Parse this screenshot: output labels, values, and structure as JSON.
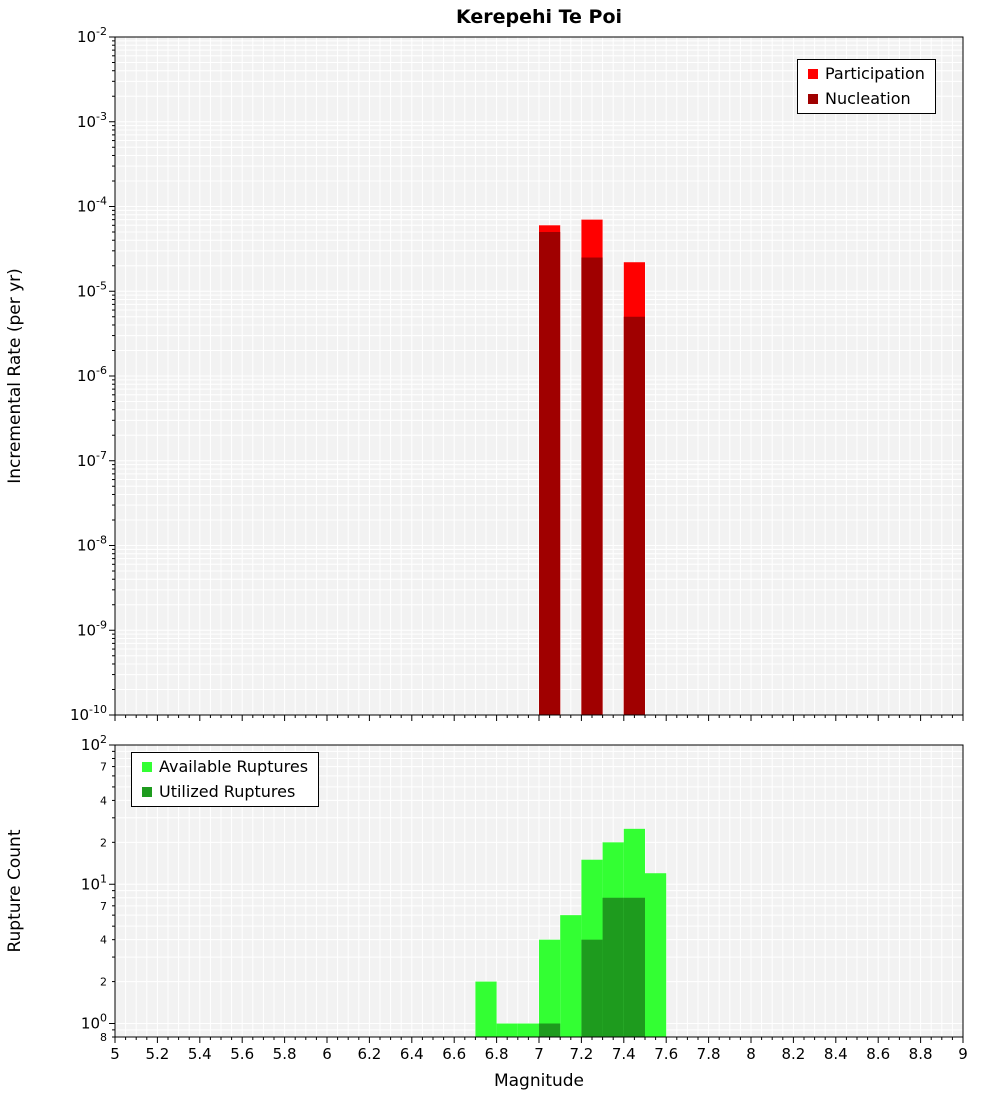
{
  "title": "Kerepehi Te Poi",
  "axes": {
    "x_label": "Magnitude",
    "top_y_label": "Incremental Rate (per yr)",
    "bottom_y_label": "Rupture Count"
  },
  "legend_top": {
    "participation": "Participation",
    "nucleation": "Nucleation"
  },
  "legend_bottom": {
    "available": "Available Ruptures",
    "utilized": "Utilized Ruptures"
  },
  "colors": {
    "participation": "#ff0000",
    "nucleation": "#a00000",
    "available": "#33ff33",
    "utilized": "#1e9b1e",
    "plot_background": "#f2f2f2",
    "grid": "#ffffff",
    "axis": "#000000"
  },
  "x_tick_labels": [
    "5",
    "5.2",
    "5.4",
    "5.6",
    "5.8",
    "6",
    "6.2",
    "6.4",
    "6.6",
    "6.8",
    "7",
    "7.2",
    "7.4",
    "7.6",
    "7.8",
    "8",
    "8.2",
    "8.4",
    "8.6",
    "8.8",
    "9"
  ],
  "y_ticks_top": [
    {
      "v": 0.01,
      "exp": "-2"
    },
    {
      "v": 0.001,
      "exp": "-3"
    },
    {
      "v": 0.0001,
      "exp": "-4"
    },
    {
      "v": 1e-05,
      "exp": "-5"
    },
    {
      "v": 1e-06,
      "exp": "-6"
    },
    {
      "v": 1e-07,
      "exp": "-7"
    },
    {
      "v": 1e-08,
      "exp": "-8"
    },
    {
      "v": 1e-09,
      "exp": "-9"
    },
    {
      "v": 1e-10,
      "exp": "-10"
    }
  ],
  "y_ticks_bottom": [
    {
      "v": 100,
      "exp": "2"
    },
    {
      "v": 70,
      "m": "7"
    },
    {
      "v": 40,
      "m": "4"
    },
    {
      "v": 20,
      "m": "2"
    },
    {
      "v": 10,
      "exp": "1"
    },
    {
      "v": 7,
      "m": "7"
    },
    {
      "v": 4,
      "m": "4"
    },
    {
      "v": 2,
      "m": "2"
    },
    {
      "v": 1,
      "exp": "0"
    },
    {
      "v": 0.8,
      "m": "8"
    }
  ],
  "chart_data": [
    {
      "type": "bar",
      "name": "incremental-rate",
      "title": "Kerepehi Te Poi",
      "xlabel": "Magnitude",
      "ylabel": "Incremental Rate (per yr)",
      "yscale": "log",
      "xlim": [
        5,
        9
      ],
      "ylim": [
        1e-10,
        0.01
      ],
      "bar_width": 0.1,
      "x": [
        7.05,
        7.25,
        7.45
      ],
      "series": [
        {
          "name": "Participation",
          "color": "#ff0000",
          "values": [
            6e-05,
            7e-05,
            2.2e-05
          ]
        },
        {
          "name": "Nucleation",
          "color": "#a00000",
          "values": [
            5e-05,
            2.5e-05,
            5e-06
          ]
        }
      ],
      "legend_position": "top-right",
      "grid": true
    },
    {
      "type": "bar",
      "name": "rupture-count",
      "xlabel": "Magnitude",
      "ylabel": "Rupture Count",
      "yscale": "log",
      "xlim": [
        5,
        9
      ],
      "ylim": [
        0.8,
        100
      ],
      "bar_width": 0.1,
      "x": [
        6.75,
        6.85,
        6.95,
        7.05,
        7.15,
        7.25,
        7.35,
        7.45,
        7.55
      ],
      "series": [
        {
          "name": "Available Ruptures",
          "color": "#33ff33",
          "values": [
            2,
            1,
            1,
            4,
            6,
            15,
            20,
            25,
            12
          ]
        },
        {
          "name": "Utilized Ruptures",
          "color": "#1e9b1e",
          "values": [
            0,
            0,
            0,
            1,
            0,
            4,
            8,
            8,
            0
          ]
        }
      ],
      "legend_position": "top-left",
      "grid": true
    }
  ]
}
